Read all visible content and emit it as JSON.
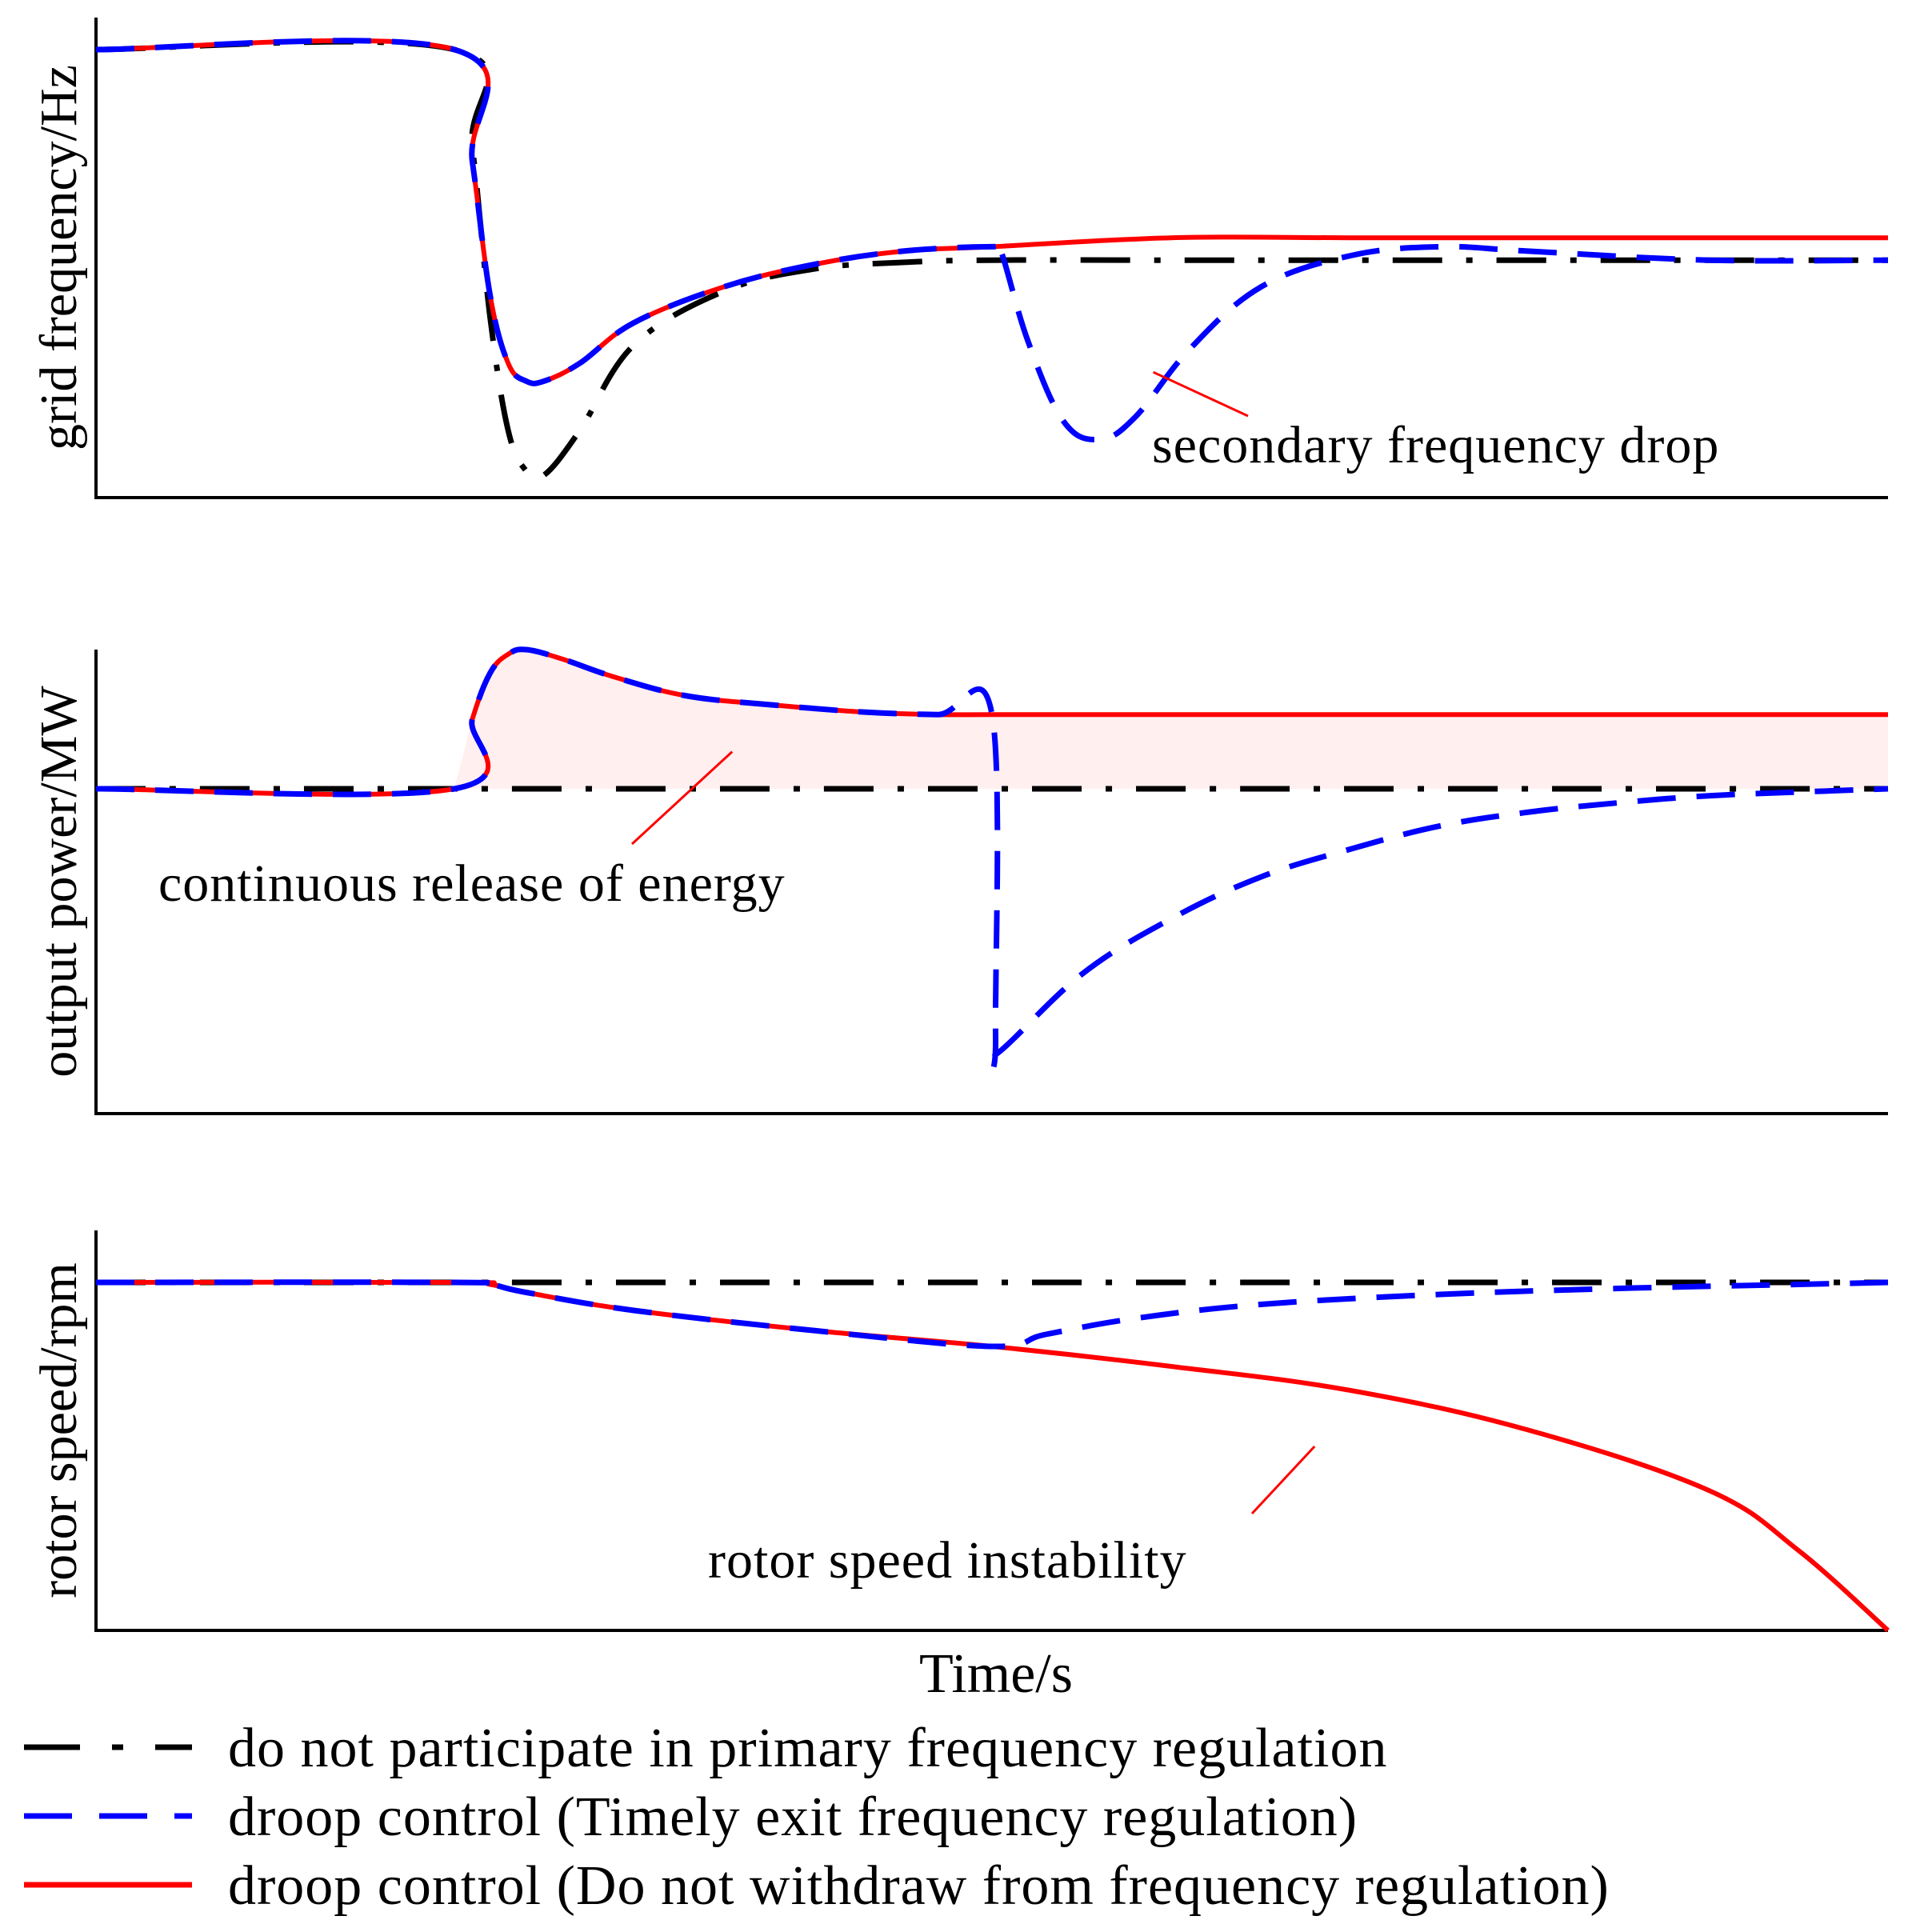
{
  "chart_data": [
    {
      "type": "line",
      "panel": "top",
      "ylabel": "grid frequency/Hz",
      "xlabel": "",
      "x_range": [
        0,
        10
      ],
      "ylim": [
        0,
        1
      ],
      "annotation": {
        "text": "secondary frequency drop",
        "target": {
          "x": 5.9,
          "y": 0.28
        }
      },
      "series": [
        {
          "name": "no_participation",
          "x": [
            0,
            2.0,
            2.1,
            2.2,
            2.3,
            2.4,
            2.5,
            2.7,
            3.0,
            3.5,
            4.0,
            4.5,
            5.0,
            6.0,
            7.0,
            8.0,
            9.0,
            10.0
          ],
          "y": [
            1.0,
            1.0,
            0.78,
            0.4,
            0.15,
            0.06,
            0.05,
            0.15,
            0.34,
            0.46,
            0.51,
            0.525,
            0.53,
            0.53,
            0.53,
            0.53,
            0.53,
            0.53
          ]
        },
        {
          "name": "droop_exit",
          "x": [
            0,
            2.0,
            2.1,
            2.2,
            2.3,
            2.4,
            2.5,
            2.7,
            3.0,
            3.5,
            4.0,
            4.5,
            5.0,
            5.05,
            5.2,
            5.4,
            5.6,
            5.8,
            6.1,
            6.5,
            7.0,
            7.5,
            8.0,
            9.0,
            10.0
          ],
          "y": [
            1.0,
            1.0,
            0.75,
            0.45,
            0.3,
            0.26,
            0.26,
            0.3,
            0.39,
            0.47,
            0.52,
            0.55,
            0.56,
            0.55,
            0.35,
            0.17,
            0.13,
            0.18,
            0.33,
            0.47,
            0.54,
            0.56,
            0.55,
            0.53,
            0.53
          ]
        },
        {
          "name": "droop_no_exit",
          "x": [
            0,
            2.0,
            2.1,
            2.2,
            2.3,
            2.4,
            2.5,
            2.7,
            3.0,
            3.5,
            4.0,
            4.5,
            5.0,
            6.0,
            7.0,
            8.0,
            9.0,
            10.0
          ],
          "y": [
            1.0,
            1.0,
            0.75,
            0.45,
            0.3,
            0.26,
            0.26,
            0.3,
            0.39,
            0.47,
            0.52,
            0.55,
            0.56,
            0.58,
            0.58,
            0.58,
            0.58,
            0.58
          ]
        }
      ]
    },
    {
      "type": "line",
      "panel": "middle",
      "ylabel": "output power/MW",
      "xlabel": "",
      "x_range": [
        0,
        10
      ],
      "ylim": [
        0,
        1
      ],
      "annotation": {
        "text": "continuous release of energy",
        "target": {
          "x": 3.55,
          "y": 0.78
        }
      },
      "series": [
        {
          "name": "no_participation",
          "x": [
            0,
            10
          ],
          "y": [
            0.7,
            0.7
          ]
        },
        {
          "name": "droop_exit",
          "x": [
            0,
            2.0,
            2.1,
            2.2,
            2.3,
            2.4,
            2.6,
            2.9,
            3.3,
            3.8,
            4.3,
            4.7,
            5.0,
            5.02,
            5.03,
            5.5,
            6.0,
            6.5,
            7.0,
            7.5,
            8.0,
            8.5,
            9.0,
            9.5,
            10.0
          ],
          "y": [
            0.7,
            0.7,
            0.85,
            0.95,
            0.99,
            1.0,
            0.98,
            0.94,
            0.9,
            0.88,
            0.865,
            0.86,
            0.86,
            0.17,
            0.13,
            0.3,
            0.42,
            0.51,
            0.57,
            0.62,
            0.65,
            0.67,
            0.685,
            0.693,
            0.7
          ]
        },
        {
          "name": "droop_no_exit",
          "x": [
            0,
            2.0,
            2.1,
            2.2,
            2.3,
            2.4,
            2.6,
            2.9,
            3.3,
            3.8,
            4.3,
            4.7,
            5.0,
            6.0,
            7.0,
            8.0,
            9.0,
            10.0
          ],
          "y": [
            0.7,
            0.7,
            0.85,
            0.95,
            0.99,
            1.0,
            0.98,
            0.94,
            0.9,
            0.88,
            0.865,
            0.86,
            0.86,
            0.86,
            0.86,
            0.86,
            0.86,
            0.86
          ]
        }
      ]
    },
    {
      "type": "line",
      "panel": "bottom",
      "ylabel": "rotor speed/rpm",
      "xlabel": "Time/s",
      "x_range": [
        0,
        10
      ],
      "ylim": [
        0,
        1
      ],
      "annotation": {
        "text": "rotor speed instability",
        "target": {
          "x": 6.8,
          "y": 0.46
        }
      },
      "series": [
        {
          "name": "no_participation",
          "x": [
            0,
            10
          ],
          "y": [
            0.87,
            0.87
          ]
        },
        {
          "name": "droop_exit",
          "x": [
            0,
            2.0,
            2.2,
            2.4,
            3.0,
            4.0,
            5.0,
            5.3,
            5.8,
            6.5,
            7.5,
            8.5,
            9.5,
            10.0
          ],
          "y": [
            0.87,
            0.87,
            0.865,
            0.845,
            0.8,
            0.75,
            0.71,
            0.74,
            0.78,
            0.815,
            0.84,
            0.855,
            0.865,
            0.87
          ]
        },
        {
          "name": "droop_no_exit",
          "x": [
            0,
            2.0,
            2.2,
            2.4,
            3.0,
            4.0,
            5.0,
            6.0,
            7.0,
            8.0,
            9.0,
            9.5,
            10.0
          ],
          "y": [
            0.87,
            0.87,
            0.865,
            0.845,
            0.8,
            0.75,
            0.71,
            0.66,
            0.6,
            0.5,
            0.35,
            0.2,
            0.0
          ]
        }
      ]
    }
  ],
  "legend": [
    {
      "key": "no_participation",
      "label": "do not participate in primary frequency regulation",
      "color": "#000000",
      "style": "dashdot"
    },
    {
      "key": "droop_exit",
      "label": "droop control (Timely exit frequency regulation)",
      "color": "#0000ff",
      "style": "dashed"
    },
    {
      "key": "droop_no_exit",
      "label": "droop control (Do not withdraw from frequency regulation)",
      "color": "#ff0000",
      "style": "solid"
    }
  ]
}
